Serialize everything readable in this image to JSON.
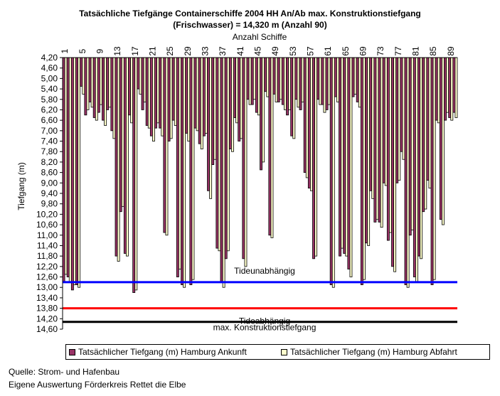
{
  "chart_data": {
    "type": "bar",
    "title": "Tatsächliche Tiefgänge Containerschiffe 2004 HH An/Ab max. Konstruktionstiefgang",
    "subtitle": "(Frischwasser) = 14,320 m (Anzahl 90)",
    "xlabel": "Anzahl Schiffe",
    "ylabel": "Tiefgang (m)",
    "ylim": [
      4.2,
      14.6
    ],
    "y_inverted": true,
    "y_ticks": [
      "4,20",
      "4,60",
      "5,00",
      "5,40",
      "5,80",
      "6,20",
      "6,60",
      "7,00",
      "7,40",
      "7,80",
      "8,20",
      "8,60",
      "9,00",
      "9,40",
      "9,80",
      "10,20",
      "10,60",
      "11,00",
      "11,40",
      "11,80",
      "12,20",
      "12,60",
      "13,00",
      "13,40",
      "13,80",
      "14,20",
      "14,60"
    ],
    "x_ticks": [
      "1",
      "5",
      "9",
      "13",
      "17",
      "21",
      "25",
      "29",
      "33",
      "37",
      "41",
      "45",
      "49",
      "53",
      "57",
      "61",
      "65",
      "69",
      "73",
      "77",
      "81",
      "85",
      "89"
    ],
    "x_tick_values": [
      1,
      5,
      9,
      13,
      17,
      21,
      25,
      29,
      33,
      37,
      41,
      45,
      49,
      53,
      57,
      61,
      65,
      69,
      73,
      77,
      81,
      85,
      89
    ],
    "ship_numbers": [
      1,
      2,
      3,
      4,
      5,
      6,
      7,
      8,
      9,
      10,
      11,
      12,
      13,
      14,
      15,
      16,
      17,
      18,
      19,
      20,
      21,
      22,
      23,
      24,
      25,
      26,
      27,
      28,
      29,
      30,
      31,
      32,
      33,
      34,
      35,
      36,
      37,
      38,
      39,
      40,
      41,
      42,
      43,
      44,
      45,
      46,
      47,
      48,
      49,
      50,
      51,
      52,
      53,
      54,
      55,
      56,
      57,
      58,
      59,
      60,
      61,
      62,
      63,
      64,
      65,
      66,
      67,
      68,
      69,
      70,
      71,
      72,
      73,
      74,
      75,
      76,
      77,
      78,
      79,
      80,
      81,
      82,
      83,
      84,
      85,
      86,
      87,
      88,
      89,
      90
    ],
    "series": [
      {
        "name": "Tatsächlicher Tiefgang (m) Hamburg Ankunft",
        "color": "#993366",
        "values": [
          12.8,
          12.6,
          13.1,
          12.9,
          5.3,
          6.4,
          5.9,
          6.5,
          6.3,
          6.6,
          6.2,
          7.0,
          11.8,
          10.1,
          11.7,
          6.4,
          13.2,
          5.4,
          6.2,
          6.8,
          7.2,
          6.9,
          6.9,
          10.9,
          7.4,
          6.6,
          12.6,
          12.9,
          7.1,
          12.9,
          6.9,
          7.5,
          7.2,
          9.3,
          8.3,
          11.5,
          12.8,
          11.9,
          7.7,
          6.5,
          7.4,
          11.9,
          5.8,
          6.0,
          6.3,
          8.5,
          5.5,
          11.0,
          5.6,
          5.9,
          6.0,
          6.4,
          7.2,
          5.8,
          6.2,
          8.6,
          9.2,
          11.9,
          5.8,
          6.0,
          6.2,
          12.9,
          5.7,
          11.8,
          11.7,
          12.3,
          5.7,
          5.9,
          12.9,
          11.3,
          9.3,
          10.5,
          10.5,
          9.0,
          11.2,
          12.2,
          9.0,
          7.8,
          12.9,
          11.0,
          12.6,
          11.8,
          10.1,
          8.9,
          12.9,
          6.6,
          10.4,
          6.6,
          6.5,
          6.3
        ],
        "offsets": [
          -0.3,
          0.2,
          -0.2,
          0.1,
          0.3,
          -0.2,
          0.2,
          0.1,
          -0.3,
          0.2,
          -0.1,
          0.3,
          0.2,
          -0.2,
          0.1,
          0.3,
          -0.1,
          0.2,
          -0.3,
          0.1,
          0.2,
          -0.2,
          0.3,
          0.1,
          -0.1,
          0.2,
          -0.3,
          0.1,
          0.3,
          -0.2,
          0.1,
          0.2,
          -0.1,
          0.3,
          -0.2,
          0.1,
          0.2,
          -0.3,
          0.1,
          0.2,
          -0.1,
          0.3,
          0.2,
          -0.2,
          0.1,
          -0.3,
          0.2,
          0.1,
          0.3,
          -0.1,
          0.2,
          -0.2,
          0.1,
          0.3,
          -0.3,
          0.2,
          0.1,
          -0.1,
          0.2,
          0.3,
          -0.2,
          0.1,
          0.2,
          -0.3,
          0.1,
          0.3,
          -0.1,
          0.2,
          -0.2,
          0.1,
          0.3,
          -0.1,
          0.2,
          0.1,
          -0.3,
          0.2,
          -0.1,
          0.3,
          0.1,
          -0.2,
          0.2,
          0.1,
          -0.1,
          0.3,
          -0.2,
          0.1,
          0.2,
          -0.3,
          0.1,
          0.2
        ]
      },
      {
        "name": "Tatsächlicher Tiefgang (m) Hamburg Abfahrt",
        "color": "#ffffcc"
      }
    ],
    "reference_lines": [
      {
        "name": "Tideunabhängig",
        "value": 12.8,
        "color": "#0000ff"
      },
      {
        "name": "Tideabhängig",
        "value": 13.8,
        "color": "#ff0000"
      },
      {
        "name": "max. Konstruktionstiefgang",
        "value": 14.32,
        "color": "#000000"
      }
    ],
    "legend_position": "bottom",
    "grid": false
  },
  "source": {
    "line1": "Quelle: Strom- und Hafenbau",
    "line2": "Eigene Auswertung Förderkreis Rettet die Elbe"
  }
}
